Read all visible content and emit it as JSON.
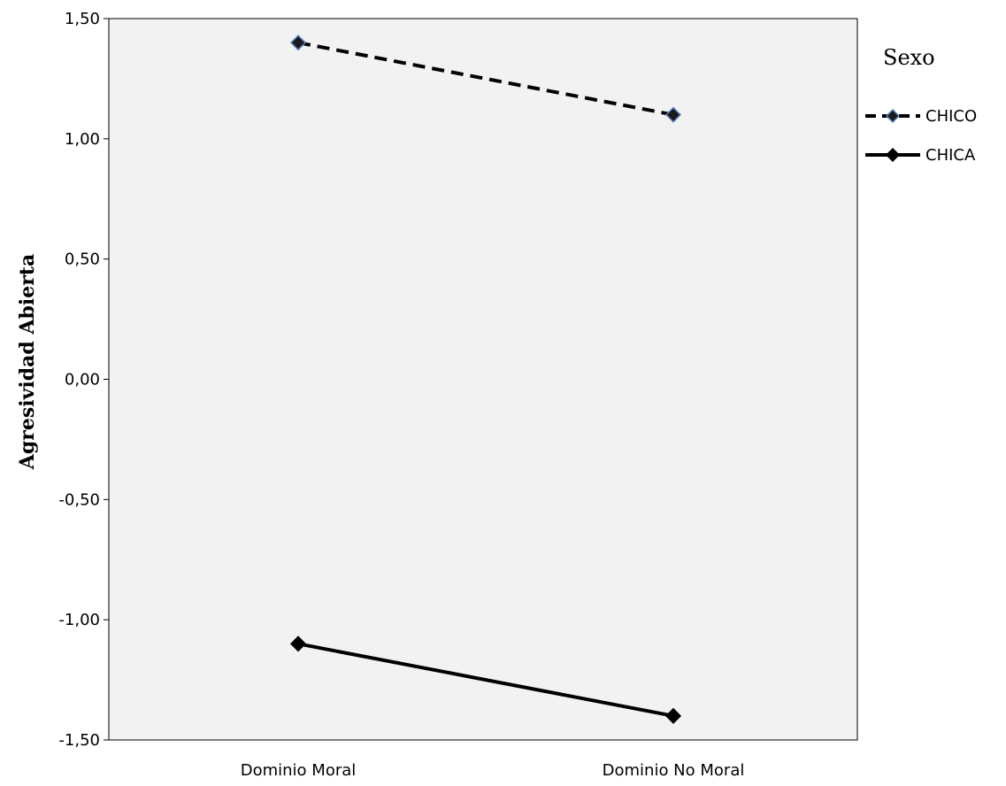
{
  "chart_data": {
    "type": "line",
    "categories": [
      "Dominio Moral",
      "Dominio No Moral"
    ],
    "series": [
      {
        "name": "CHICO",
        "values": [
          1.4,
          1.1
        ],
        "line_style": "dashed",
        "marker_fill": "#1a1a1a",
        "marker_edge": "#5b7fbf"
      },
      {
        "name": "CHICA",
        "values": [
          -1.1,
          -1.4
        ],
        "line_style": "solid",
        "marker_fill": "#000000",
        "marker_edge": "#000000"
      }
    ],
    "ylabel": "Agresividad Abierta",
    "xlabel": "",
    "ylim": [
      -1.5,
      1.5
    ],
    "yticks": [
      1.5,
      1.0,
      0.5,
      0.0,
      -0.5,
      -1.0,
      -1.5
    ],
    "ytick_labels": [
      "1,50",
      "1,00",
      "0,50",
      "0,00",
      "-0,50",
      "-1,00",
      "-1,50"
    ],
    "legend_title": "Sexo",
    "legend_position": "right",
    "plot_background": "#f2f2f2",
    "grid": false
  }
}
